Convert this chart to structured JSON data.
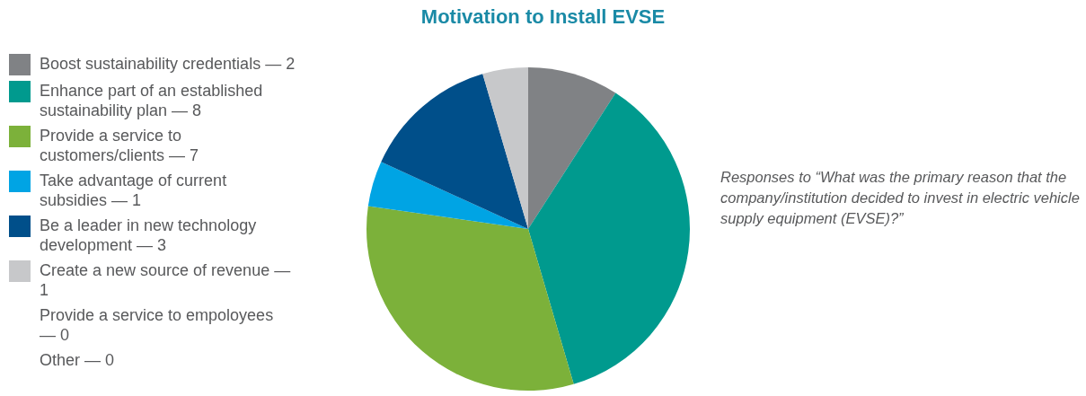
{
  "chart_data": {
    "type": "pie",
    "title": "Motivation to Install EVSE",
    "categories": [
      "Boost sustainability credentials — 2",
      "Enhance part of an established sustainability plan — 8",
      "Provide a service to customers/clients — 7",
      "Take advantage of current subsidies — 1",
      "Be a leader in new technology development — 3",
      "Create a new source of revenue — 1",
      "Provide a service to empoloyees — 0",
      "Other — 0"
    ],
    "values": [
      2,
      8,
      7,
      1,
      3,
      1,
      0,
      0
    ],
    "colors": [
      "#808285",
      "#009a8e",
      "#7cb13a",
      "#00a4e4",
      "#004f8a",
      "#c7c8ca",
      null,
      null
    ],
    "legend": "left",
    "annotations": [
      "Responses to “What was the primary reason that the company/institution decided to invest in electric vehicle supply equipment (EVSE)?”"
    ]
  }
}
